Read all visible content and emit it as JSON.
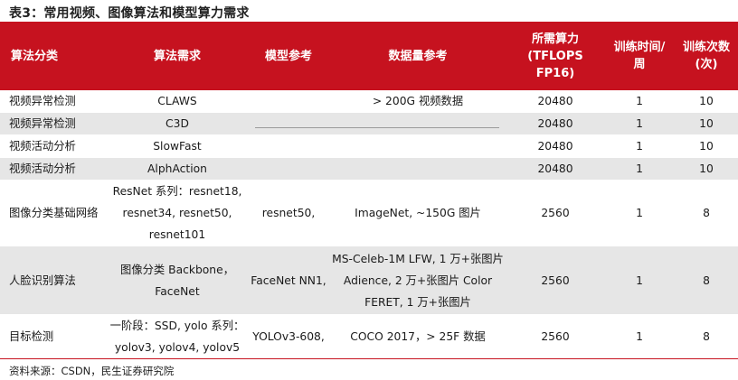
{
  "title": "表3：常用视频、图像算法和模型算力需求",
  "headers": [
    "算法分类",
    "算法需求",
    "模型参考",
    "数据量参考",
    "所需算力 (TFLOPS FP16)",
    "训练时间/ 周",
    "训练次数 (次)"
  ],
  "rows": [
    [
      "视频异常检测",
      "CLAWS",
      "",
      "> 200G 视频数据",
      "20480",
      "1",
      "10"
    ],
    [
      "视频异常检测",
      "C3D",
      "",
      "",
      "20480",
      "1",
      "10"
    ],
    [
      "视频活动分析",
      "SlowFast",
      "",
      "",
      "20480",
      "1",
      "10"
    ],
    [
      "视频活动分析",
      "AlphAction",
      "",
      "",
      "20480",
      "1",
      "10"
    ],
    [
      "图像分类基础网络",
      "ResNet 系列：resnet18, resnet34, resnet50, resnet101",
      "resnet50,",
      "ImageNet, ~150G 图片",
      "2560",
      "1",
      "8"
    ],
    [
      "人脸识别算法",
      "图像分类 Backbone，FaceNet",
      "FaceNet NN1,",
      "MS-Celeb-1M LFW, 1 万+张图片 Adience, 2 万+张图片 Color FERET, 1 万+张图片",
      "2560",
      "1",
      "8"
    ],
    [
      "目标检测",
      "一阶段：SSD, yolo 系列：yolov3, yolov4, yolov5",
      "YOLOv3-608,",
      "COCO 2017，> 25F 数据",
      "2560",
      "1",
      "8"
    ]
  ],
  "source": "资料来源：CSDN，民生证券研究院",
  "colors": {
    "header_bg": "#c6121f",
    "stripe": "#e6e6e6"
  }
}
